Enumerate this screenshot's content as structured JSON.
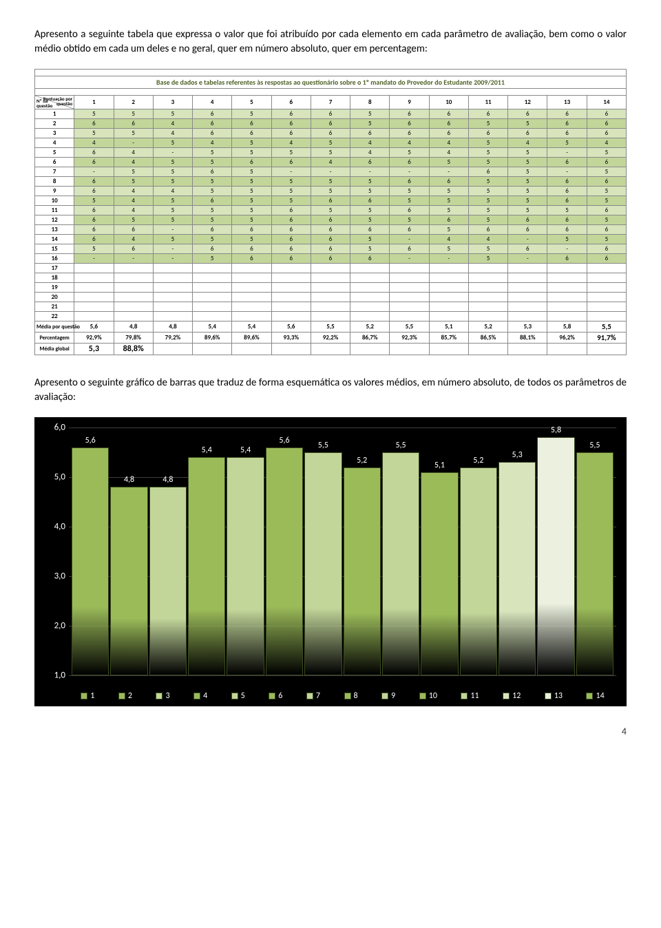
{
  "intro_text": "Apresento a seguinte tabela que expressa o valor que foi atribuído por cada elemento em cada parâmetro de avaliação, bem como o valor médio obtido em cada um deles e no geral, quer em número absoluto, quer em percentagem:",
  "table": {
    "title": "Base de dados e tabelas referentes às respostas ao questionário sobre o 1º mandato do Provedor do Estudante 2009/2011",
    "corner_top": "Pontuação por\nquestão",
    "corner_bottom": "Nº da\nquestão",
    "columns": [
      "1",
      "2",
      "3",
      "4",
      "5",
      "6",
      "7",
      "8",
      "9",
      "10",
      "11",
      "12",
      "13",
      "14"
    ],
    "rows": [
      {
        "n": "1",
        "v": [
          "5",
          "5",
          "5",
          "6",
          "5",
          "6",
          "6",
          "5",
          "6",
          "6",
          "6",
          "6",
          "6",
          "6"
        ]
      },
      {
        "n": "2",
        "v": [
          "6",
          "6",
          "4",
          "6",
          "6",
          "6",
          "6",
          "5",
          "6",
          "6",
          "5",
          "5",
          "6",
          "6"
        ]
      },
      {
        "n": "3",
        "v": [
          "5",
          "5",
          "4",
          "6",
          "6",
          "6",
          "6",
          "6",
          "6",
          "6",
          "6",
          "6",
          "6",
          "6"
        ]
      },
      {
        "n": "4",
        "v": [
          "4",
          "-",
          "5",
          "4",
          "5",
          "4",
          "5",
          "4",
          "4",
          "4",
          "5",
          "4",
          "5",
          "4"
        ]
      },
      {
        "n": "5",
        "v": [
          "6",
          "4",
          "-",
          "5",
          "5",
          "5",
          "5",
          "4",
          "5",
          "4",
          "5",
          "5",
          "-",
          "5"
        ]
      },
      {
        "n": "6",
        "v": [
          "6",
          "4",
          "5",
          "5",
          "6",
          "6",
          "4",
          "6",
          "6",
          "5",
          "5",
          "5",
          "6",
          "6"
        ]
      },
      {
        "n": "7",
        "v": [
          "-",
          "5",
          "5",
          "6",
          "5",
          "-",
          "-",
          "-",
          "-",
          "-",
          "6",
          "5",
          "-",
          "5"
        ]
      },
      {
        "n": "8",
        "v": [
          "6",
          "5",
          "5",
          "5",
          "5",
          "5",
          "5",
          "5",
          "6",
          "6",
          "5",
          "5",
          "6",
          "6"
        ]
      },
      {
        "n": "9",
        "v": [
          "6",
          "4",
          "4",
          "5",
          "5",
          "5",
          "5",
          "5",
          "5",
          "5",
          "5",
          "5",
          "6",
          "5"
        ]
      },
      {
        "n": "10",
        "v": [
          "5",
          "4",
          "5",
          "6",
          "5",
          "5",
          "6",
          "6",
          "5",
          "5",
          "5",
          "5",
          "6",
          "5"
        ]
      },
      {
        "n": "11",
        "v": [
          "6",
          "4",
          "5",
          "5",
          "5",
          "6",
          "5",
          "5",
          "6",
          "5",
          "5",
          "5",
          "5",
          "6"
        ]
      },
      {
        "n": "12",
        "v": [
          "6",
          "5",
          "5",
          "5",
          "5",
          "6",
          "6",
          "5",
          "5",
          "6",
          "5",
          "6",
          "6",
          "5"
        ]
      },
      {
        "n": "13",
        "v": [
          "6",
          "6",
          "-",
          "6",
          "6",
          "6",
          "6",
          "6",
          "6",
          "5",
          "6",
          "6",
          "6",
          "6"
        ]
      },
      {
        "n": "14",
        "v": [
          "6",
          "4",
          "5",
          "5",
          "5",
          "6",
          "6",
          "5",
          "-",
          "4",
          "4",
          "-",
          "5",
          "5"
        ]
      },
      {
        "n": "15",
        "v": [
          "5",
          "6",
          "-",
          "6",
          "6",
          "6",
          "6",
          "5",
          "6",
          "5",
          "5",
          "6",
          "-",
          "6"
        ]
      },
      {
        "n": "16",
        "v": [
          "-",
          "-",
          "-",
          "5",
          "6",
          "6",
          "6",
          "6",
          "-",
          "-",
          "5",
          "-",
          "6",
          "6"
        ]
      },
      {
        "n": "17",
        "v": [
          "",
          "",
          "",
          "",
          "",
          "",
          "",
          "",
          "",
          "",
          "",
          "",
          "",
          ""
        ]
      },
      {
        "n": "18",
        "v": [
          "",
          "",
          "",
          "",
          "",
          "",
          "",
          "",
          "",
          "",
          "",
          "",
          "",
          ""
        ]
      },
      {
        "n": "19",
        "v": [
          "",
          "",
          "",
          "",
          "",
          "",
          "",
          "",
          "",
          "",
          "",
          "",
          "",
          ""
        ]
      },
      {
        "n": "20",
        "v": [
          "",
          "",
          "",
          "",
          "",
          "",
          "",
          "",
          "",
          "",
          "",
          "",
          "",
          ""
        ]
      },
      {
        "n": "21",
        "v": [
          "",
          "",
          "",
          "",
          "",
          "",
          "",
          "",
          "",
          "",
          "",
          "",
          "",
          ""
        ]
      },
      {
        "n": "22",
        "v": [
          "",
          "",
          "",
          "",
          "",
          "",
          "",
          "",
          "",
          "",
          "",
          "",
          "",
          ""
        ]
      }
    ],
    "media_label": "Média por questão",
    "media": [
      "5,6",
      "4,8",
      "4,8",
      "5,4",
      "5,4",
      "5,6",
      "5,5",
      "5,2",
      "5,5",
      "5,1",
      "5,2",
      "5,3",
      "5,8",
      "5,5"
    ],
    "perc_label": "Percentagem",
    "perc": [
      "92,9%",
      "79,8%",
      "79,2%",
      "89,6%",
      "89,6%",
      "93,3%",
      "92,2%",
      "86,7%",
      "92,3%",
      "85,7%",
      "86,5%",
      "88,1%",
      "96,2%",
      "91,7%"
    ],
    "global_label": "Média global",
    "global": [
      "5,3",
      "88,8%"
    ],
    "colors": {
      "light": "#d7e4bc",
      "dark": "#c2d69a",
      "border": "#888888",
      "title_text": "#4f6228"
    }
  },
  "chart_caption": "Apresento o seguinte gráfico de barras que traduz de forma esquemática os valores médios, em número absoluto, de todos os parâmetros de avaliação:",
  "chart": {
    "type": "bar",
    "background_color": "#000000",
    "grid_color": "#404040",
    "text_color": "#ffffff",
    "ylim": [
      1.0,
      6.0
    ],
    "ytick_step": 1.0,
    "yticks": [
      "1,0",
      "2,0",
      "3,0",
      "4,0",
      "5,0",
      "6,0"
    ],
    "categories": [
      "1",
      "2",
      "3",
      "4",
      "5",
      "6",
      "7",
      "8",
      "9",
      "10",
      "11",
      "12",
      "13",
      "14"
    ],
    "values": [
      5.6,
      4.8,
      4.8,
      5.4,
      5.4,
      5.6,
      5.5,
      5.2,
      5.5,
      5.1,
      5.2,
      5.3,
      5.8,
      5.5
    ],
    "value_labels": [
      "5,6",
      "4,8",
      "4,8",
      "5,4",
      "5,4",
      "5,6",
      "5,5",
      "5,2",
      "5,5",
      "5,1",
      "5,2",
      "5,3",
      "5,8",
      "5,5"
    ],
    "bar_colors": [
      "#9bbb59",
      "#9bbb59",
      "#c2d69a",
      "#9bbb59",
      "#c2d69a",
      "#9bbb59",
      "#c2d69a",
      "#9bbb59",
      "#c2d69a",
      "#9bbb59",
      "#c2d69a",
      "#d7e4bc",
      "#ebf1de",
      "#9bbb59"
    ],
    "bar_border": "#3a4a1f",
    "label_fontsize": 12
  },
  "page_number": "4"
}
